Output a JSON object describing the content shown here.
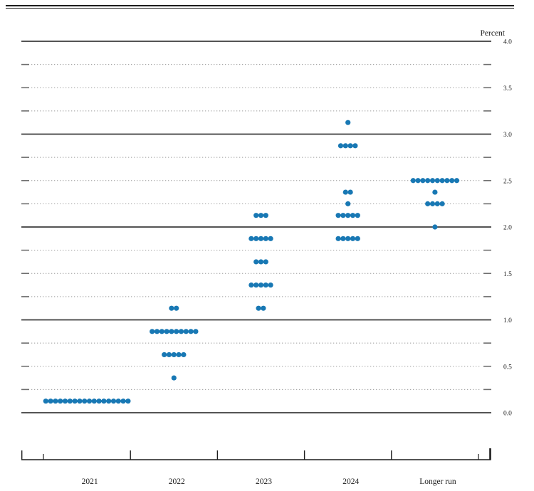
{
  "chart": {
    "y_axis_title": "Percent"
  },
  "chart_data": {
    "type": "scatter",
    "subtype": "fomc-dot-plot",
    "title": "",
    "xlabel": "",
    "ylabel": "Percent",
    "ylim": [
      0.0,
      4.0
    ],
    "gridlines": "dotted every 0.25, solid at integers, tick caps at both ends",
    "legend": "none",
    "categories": [
      "2021",
      "2022",
      "2023",
      "2024",
      "Longer run"
    ],
    "y_ticks": [
      {
        "label": "4.0",
        "value": 4.0
      },
      {
        "label": "3.5",
        "value": 3.5
      },
      {
        "label": "3.0",
        "value": 3.0
      },
      {
        "label": "2.5",
        "value": 2.5
      },
      {
        "label": "2.0",
        "value": 2.0
      },
      {
        "label": "1.5",
        "value": 1.5
      },
      {
        "label": "1.0",
        "value": 1.0
      },
      {
        "label": "0.5",
        "value": 0.5
      },
      {
        "label": "0.0",
        "value": 0.0
      }
    ],
    "series": [
      {
        "name": "2021",
        "dots": [
          {
            "rate": 0.125,
            "count": 18
          }
        ]
      },
      {
        "name": "2022",
        "dots": [
          {
            "rate": 1.125,
            "count": 2
          },
          {
            "rate": 0.875,
            "count": 10
          },
          {
            "rate": 0.625,
            "count": 5
          },
          {
            "rate": 0.375,
            "count": 1
          }
        ]
      },
      {
        "name": "2023",
        "dots": [
          {
            "rate": 2.125,
            "count": 3
          },
          {
            "rate": 1.875,
            "count": 5
          },
          {
            "rate": 1.625,
            "count": 3
          },
          {
            "rate": 1.375,
            "count": 5
          },
          {
            "rate": 1.125,
            "count": 2
          }
        ]
      },
      {
        "name": "2024",
        "dots": [
          {
            "rate": 3.125,
            "count": 1
          },
          {
            "rate": 2.875,
            "count": 4
          },
          {
            "rate": 2.375,
            "count": 2
          },
          {
            "rate": 2.25,
            "count": 1
          },
          {
            "rate": 2.125,
            "count": 5
          },
          {
            "rate": 1.875,
            "count": 5
          }
        ]
      },
      {
        "name": "Longer run",
        "dots": [
          {
            "rate": 2.5,
            "count": 10
          },
          {
            "rate": 2.375,
            "count": 1
          },
          {
            "rate": 2.25,
            "count": 4
          },
          {
            "rate": 2.0,
            "count": 1
          }
        ]
      }
    ],
    "colors": {
      "dot": "#1878b4",
      "solid_line": "#3b3b3b",
      "dotted_line": "#9b9b9b",
      "line_cap": "#6e6e6e",
      "axis": "#1c1c1c",
      "text": "#1a1a1a"
    }
  }
}
